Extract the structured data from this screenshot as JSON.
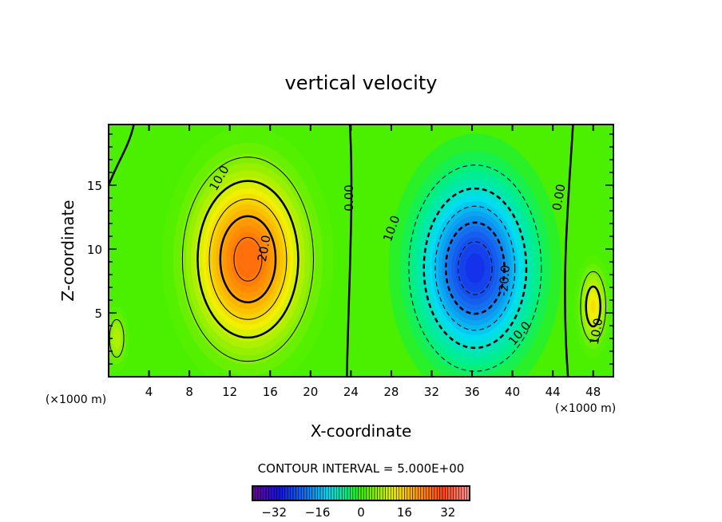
{
  "chart_data": {
    "type": "heatmap",
    "title": "vertical velocity",
    "xlabel": "X-coordinate",
    "ylabel": "Z-coordinate",
    "x_unit": "(×1000 m)",
    "y_unit": "(×1000 m)",
    "xlim": [
      0,
      50
    ],
    "ylim": [
      0,
      19.75
    ],
    "xticks": [
      4,
      8,
      12,
      16,
      20,
      24,
      28,
      32,
      36,
      40,
      44,
      48
    ],
    "yticks": [
      5,
      10,
      15
    ],
    "contour_interval_label": "CONTOUR INTERVAL = 5.000E+00",
    "contour_interval": 5,
    "colorbar": {
      "range": [
        -40,
        40
      ],
      "ticks": [
        -32,
        -16,
        0,
        16,
        32
      ],
      "tick_labels": [
        "−32",
        "−16",
        "0",
        "16",
        "32"
      ]
    },
    "features": [
      {
        "name": "updraft",
        "x": 13.8,
        "z": 9.2,
        "amplitude": 27,
        "rx": 6.5,
        "rz": 8
      },
      {
        "name": "downdraft",
        "x": 36.3,
        "z": 8.5,
        "amplitude": -28,
        "rx": 6.5,
        "rz": 8
      },
      {
        "name": "edge-updraft",
        "x": 48,
        "z": 5.5,
        "amplitude": 14,
        "rx": 1.6,
        "rz": 3.5
      },
      {
        "name": "left-updraft",
        "x": 0.8,
        "z": 3,
        "amplitude": 9,
        "rx": 1.2,
        "rz": 2.5
      }
    ],
    "contour_labels": [
      {
        "text": "10.0",
        "x": 11.3,
        "z": 15.4,
        "rot": -60
      },
      {
        "text": "20.0",
        "x": 15.8,
        "z": 10,
        "rot": -80
      },
      {
        "text": "0.00",
        "x": 24.2,
        "z": 14,
        "rot": -90
      },
      {
        "text": "10.0",
        "x": 28.4,
        "z": 11.5,
        "rot": -70
      },
      {
        "text": "-20.0",
        "x": 39.6,
        "z": 7.5,
        "rot": -85
      },
      {
        "text": "10.0",
        "x": 41,
        "z": 3.2,
        "rot": -50
      },
      {
        "text": "0.00",
        "x": 45,
        "z": 14,
        "rot": -80
      },
      {
        "text": "10.0",
        "x": 48.7,
        "z": 3.5,
        "rot": -80
      }
    ]
  }
}
